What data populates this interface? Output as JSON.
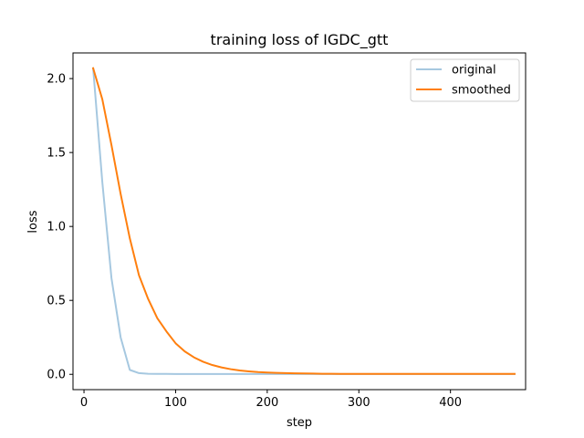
{
  "chart_data": {
    "type": "line",
    "title": "training loss of IGDC_gtt",
    "xlabel": "step",
    "ylabel": "loss",
    "xlim": [
      -12,
      482
    ],
    "ylim": [
      -0.1035,
      2.1735
    ],
    "x_ticks": [
      0,
      100,
      200,
      300,
      400
    ],
    "x_tick_labels": [
      "0",
      "100",
      "200",
      "300",
      "400"
    ],
    "y_ticks": [
      0.0,
      0.5,
      1.0,
      1.5,
      2.0
    ],
    "y_tick_labels": [
      "0.0",
      "0.5",
      "1.0",
      "1.5",
      "2.0"
    ],
    "grid": false,
    "legend_position": "top-right",
    "x": [
      10,
      20,
      30,
      40,
      50,
      60,
      70,
      80,
      90,
      100,
      110,
      120,
      130,
      140,
      150,
      160,
      170,
      180,
      190,
      200,
      210,
      220,
      230,
      240,
      250,
      260,
      270,
      280,
      290,
      300,
      310,
      320,
      330,
      340,
      350,
      360,
      370,
      380,
      390,
      400,
      410,
      420,
      430,
      440,
      450,
      460,
      470
    ],
    "series": [
      {
        "name": "original",
        "color": "#a6c8e0",
        "values": [
          2.07,
          1.3,
          0.65,
          0.25,
          0.03,
          0.008,
          0.004,
          0.003,
          0.003,
          0.002,
          0.002,
          0.002,
          0.002,
          0.002,
          0.002,
          0.002,
          0.002,
          0.002,
          0.002,
          0.002,
          0.002,
          0.002,
          0.002,
          0.002,
          0.002,
          0.002,
          0.002,
          0.002,
          0.002,
          0.002,
          0.002,
          0.002,
          0.002,
          0.002,
          0.002,
          0.002,
          0.002,
          0.002,
          0.002,
          0.002,
          0.002,
          0.002,
          0.002,
          0.002,
          0.002,
          0.002,
          0.002
        ]
      },
      {
        "name": "smoothed",
        "color": "#ff7f0e",
        "values": [
          2.07,
          1.86,
          1.55,
          1.22,
          0.92,
          0.67,
          0.51,
          0.38,
          0.29,
          0.21,
          0.155,
          0.115,
          0.085,
          0.063,
          0.047,
          0.035,
          0.026,
          0.02,
          0.015,
          0.012,
          0.01,
          0.008,
          0.007,
          0.006,
          0.005,
          0.004,
          0.004,
          0.003,
          0.003,
          0.003,
          0.003,
          0.003,
          0.003,
          0.003,
          0.003,
          0.003,
          0.003,
          0.003,
          0.003,
          0.003,
          0.003,
          0.003,
          0.003,
          0.003,
          0.003,
          0.003,
          0.003
        ]
      }
    ]
  }
}
